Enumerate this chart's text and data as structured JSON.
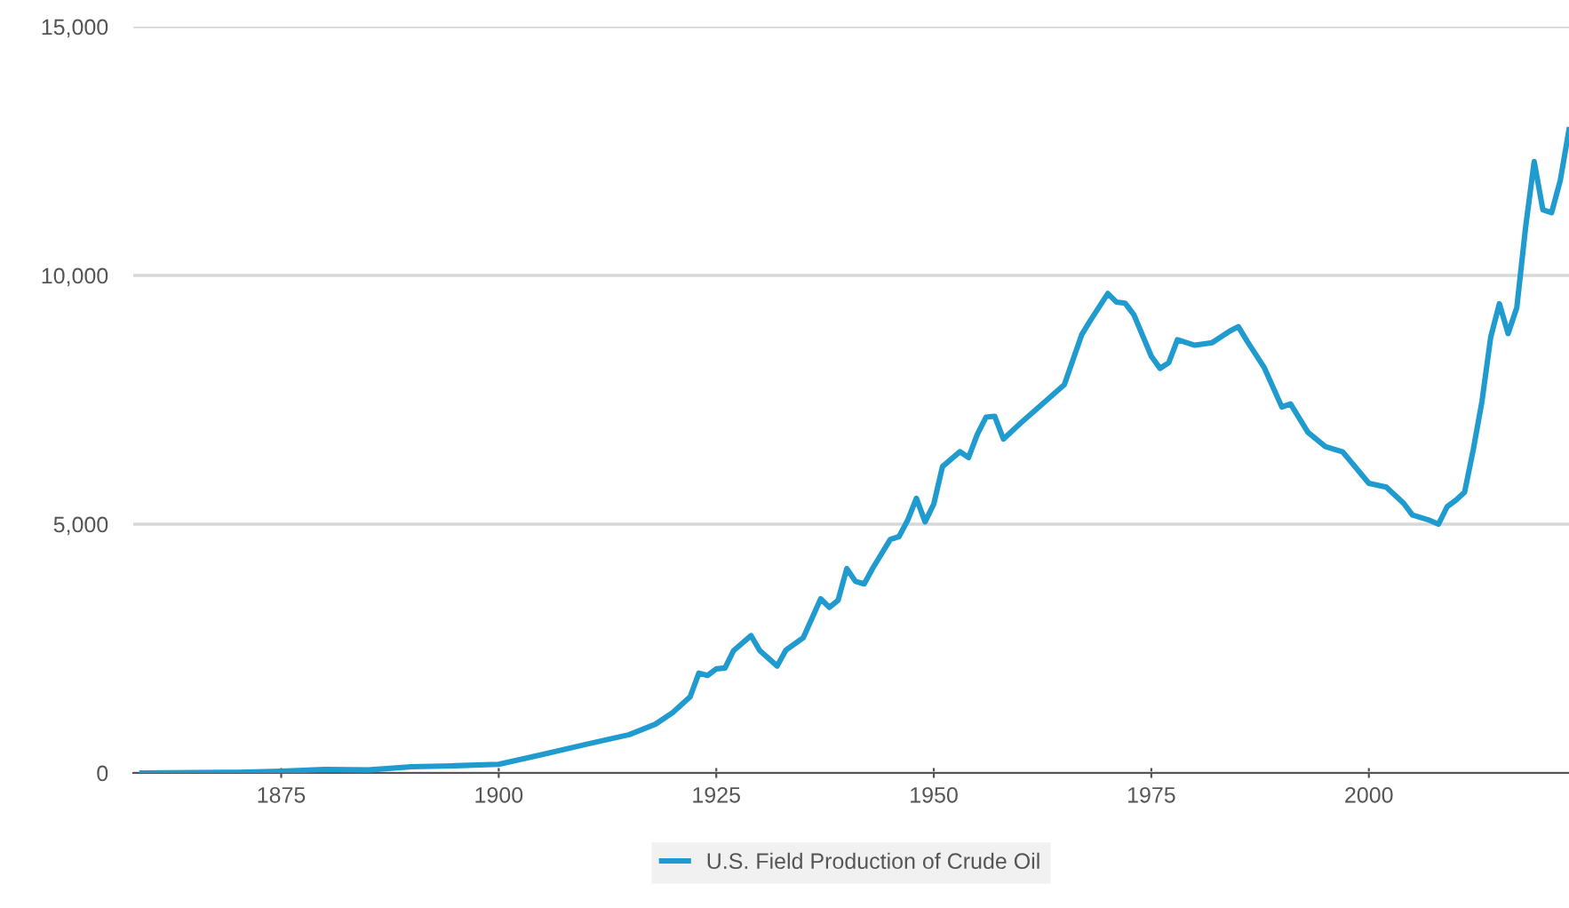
{
  "chart_data": {
    "type": "line",
    "xlim": [
      1858,
      2023
    ],
    "xticks": [
      1875,
      1900,
      1925,
      1950,
      1975,
      2000
    ],
    "ylim": [
      0,
      15000
    ],
    "yticks": [
      {
        "value": 0,
        "label": "0"
      },
      {
        "value": 5000,
        "label": "5,000"
      },
      {
        "value": 10000,
        "label": "10,000"
      },
      {
        "value": 15000,
        "label": "15,000"
      }
    ],
    "grid": "y",
    "legend": "bottom",
    "marker": "none",
    "line_style": "solid",
    "series": [
      {
        "name": "U.S. Field Production of Crude Oil",
        "color": "#1f9bcf",
        "x": [
          1859,
          1865,
          1870,
          1875,
          1880,
          1885,
          1890,
          1895,
          1900,
          1905,
          1910,
          1915,
          1918,
          1920,
          1922,
          1923,
          1924,
          1925,
          1926,
          1927,
          1929,
          1930,
          1932,
          1933,
          1935,
          1937,
          1938,
          1939,
          1940,
          1941,
          1942,
          1943,
          1945,
          1946,
          1947,
          1948,
          1949,
          1950,
          1951,
          1953,
          1954,
          1955,
          1956,
          1957,
          1958,
          1960,
          1965,
          1967,
          1968,
          1970,
          1971,
          1972,
          1973,
          1975,
          1976,
          1977,
          1978,
          1980,
          1982,
          1984,
          1985,
          1986,
          1988,
          1990,
          1991,
          1993,
          1995,
          1997,
          2000,
          2002,
          2004,
          2005,
          2007,
          2008,
          2009,
          2010,
          2011,
          2012,
          2013,
          2014,
          2015,
          2016,
          2017,
          2018,
          2019,
          2020,
          2021,
          2022,
          2023
        ],
        "values": [
          0,
          7,
          14,
          34,
          72,
          60,
          125,
          145,
          174,
          370,
          574,
          770,
          980,
          1214,
          1530,
          2007,
          1960,
          2092,
          2110,
          2460,
          2760,
          2460,
          2150,
          2470,
          2720,
          3500,
          3327,
          3470,
          4107,
          3850,
          3800,
          4120,
          4695,
          4750,
          5080,
          5520,
          5046,
          5407,
          6158,
          6458,
          6340,
          6807,
          7151,
          7170,
          6710,
          7035,
          7804,
          8810,
          9096,
          9637,
          9463,
          9441,
          9208,
          8375,
          8132,
          8245,
          8707,
          8597,
          8649,
          8879,
          8971,
          8680,
          8140,
          7355,
          7417,
          6847,
          6560,
          6452,
          5822,
          5746,
          5419,
          5184,
          5077,
          5000,
          5353,
          5482,
          5643,
          6500,
          7470,
          8757,
          9431,
          8831,
          9352,
          10950,
          12289,
          11318,
          11261,
          11911,
          12928
        ]
      }
    ]
  }
}
